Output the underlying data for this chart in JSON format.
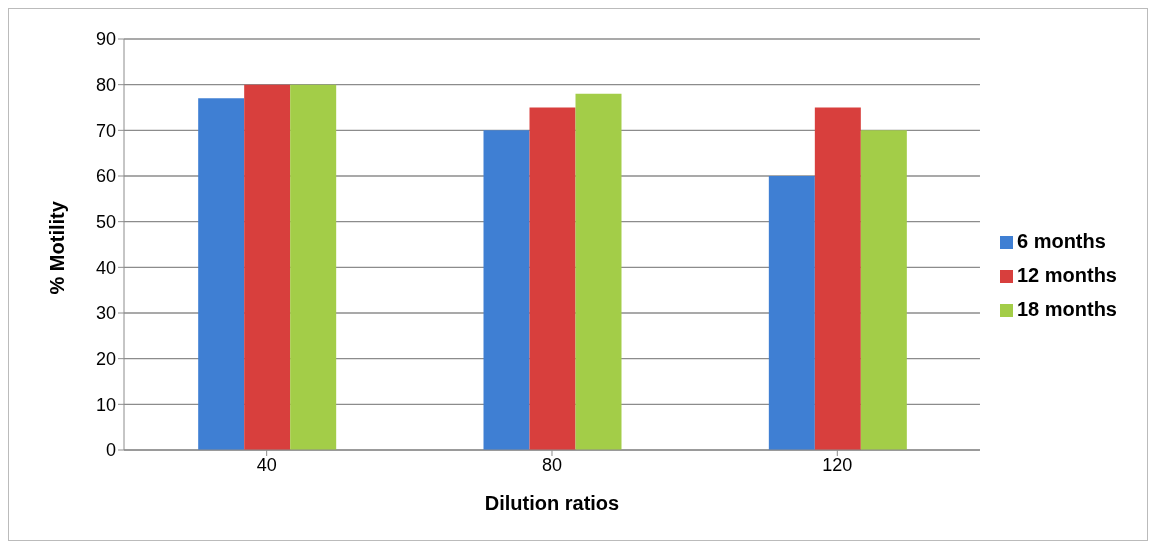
{
  "chart_data": {
    "type": "bar",
    "xlabel": "Dilution ratios",
    "ylabel": "% Motility",
    "categories": [
      "40",
      "80",
      "120"
    ],
    "series": [
      {
        "name": "6 months",
        "color": "#3f7fd3",
        "values": [
          77,
          70,
          60
        ]
      },
      {
        "name": "12 months",
        "color": "#d83f3d",
        "values": [
          80,
          75,
          75
        ]
      },
      {
        "name": "18 months",
        "color": "#a3cd48",
        "values": [
          80,
          78,
          70
        ]
      }
    ],
    "ylim": [
      0,
      90
    ],
    "yticks": [
      0,
      10,
      20,
      30,
      40,
      50,
      60,
      70,
      80,
      90
    ],
    "grid": "y",
    "legend": "right"
  }
}
